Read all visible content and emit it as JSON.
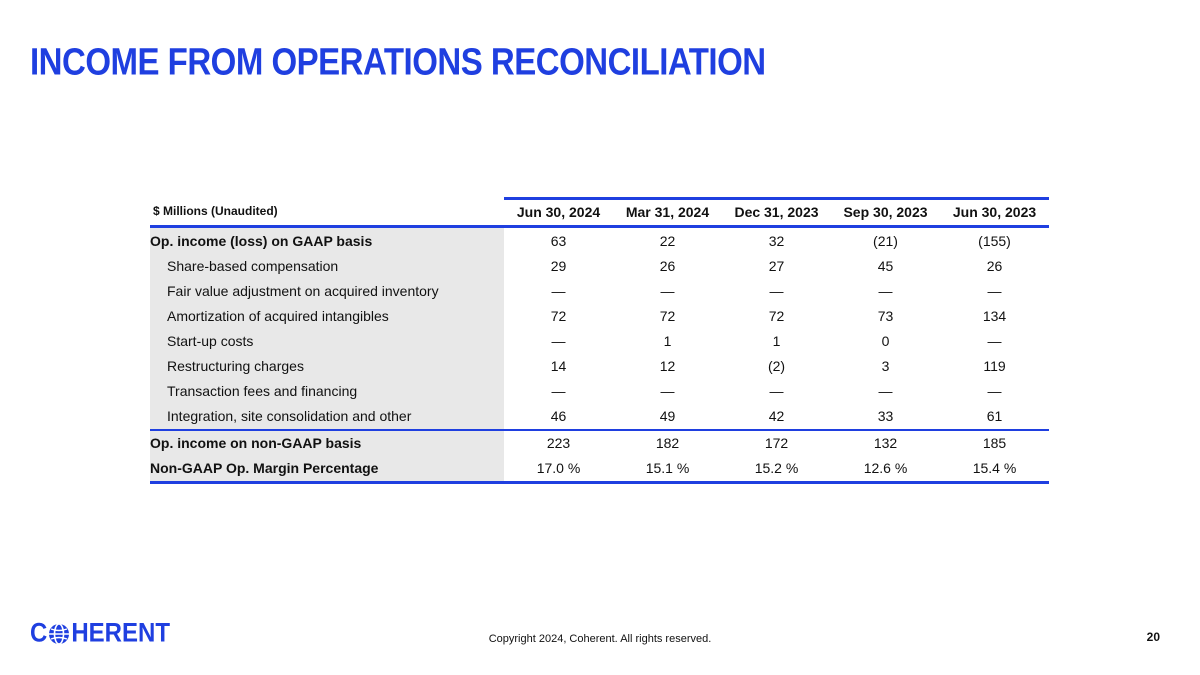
{
  "slide": {
    "title": "INCOME FROM OPERATIONS RECONCILIATION",
    "accent_color": "#1f3fe0",
    "page_number": "20",
    "copyright": "Copyright 2024, Coherent. All rights reserved."
  },
  "brand": {
    "logo_text_left": "C",
    "logo_text_right": "HERENT",
    "logo_icon": "globe-icon"
  },
  "table": {
    "header_label": "$ Millions (Unaudited)",
    "columns": [
      "Jun 30, 2024",
      "Mar 31, 2024",
      "Dec 31, 2023",
      "Sep 30, 2023",
      "Jun 30, 2023"
    ],
    "rows": [
      {
        "label": "Op. income (loss) on GAAP basis",
        "values": [
          "63",
          "22",
          "32",
          "(21)",
          "(155)"
        ]
      },
      {
        "label": "Share-based compensation",
        "values": [
          "29",
          "26",
          "27",
          "45",
          "26"
        ]
      },
      {
        "label": "Fair value adjustment on acquired inventory",
        "values": [
          "—",
          "—",
          "—",
          "—",
          "—"
        ]
      },
      {
        "label": "Amortization of acquired intangibles",
        "values": [
          "72",
          "72",
          "72",
          "73",
          "134"
        ]
      },
      {
        "label": "Start-up costs",
        "values": [
          "—",
          "1",
          "1",
          "0",
          "—"
        ]
      },
      {
        "label": "Restructuring charges",
        "values": [
          "14",
          "12",
          "(2)",
          "3",
          "119"
        ]
      },
      {
        "label": "Transaction fees and financing",
        "values": [
          "—",
          "—",
          "—",
          "—",
          "—"
        ]
      },
      {
        "label": "Integration, site consolidation and other",
        "values": [
          "46",
          "49",
          "42",
          "33",
          "61"
        ]
      },
      {
        "label": "Op. income on non-GAAP basis",
        "values": [
          "223",
          "182",
          "172",
          "132",
          "185"
        ]
      },
      {
        "label": "Non-GAAP Op. Margin Percentage",
        "values": [
          "17.0 %",
          "15.1 %",
          "15.2 %",
          "12.6 %",
          "15.4 %"
        ]
      }
    ]
  }
}
